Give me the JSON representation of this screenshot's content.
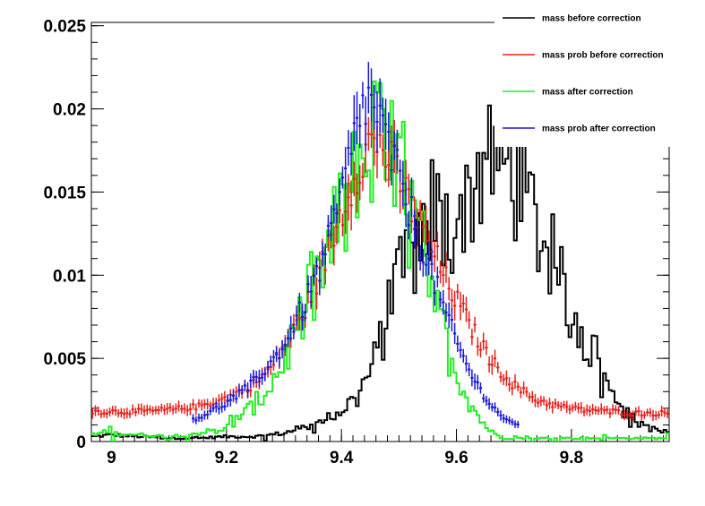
{
  "chart_data": {
    "type": "line",
    "title": "",
    "xlabel": "",
    "ylabel": "",
    "xlim": [
      8.965,
      9.97
    ],
    "ylim": [
      0,
      0.0252
    ],
    "grid": false,
    "legend_position": "top-right",
    "x_ticks": [
      {
        "value": 9.0,
        "label": "9"
      },
      {
        "value": 9.2,
        "label": "9.2"
      },
      {
        "value": 9.4,
        "label": "9.4"
      },
      {
        "value": 9.6,
        "label": "9.6"
      },
      {
        "value": 9.8,
        "label": "9.8"
      }
    ],
    "y_ticks": [
      {
        "value": 0,
        "label": "0"
      },
      {
        "value": 0.005,
        "label": "0.005"
      },
      {
        "value": 0.01,
        "label": "0.01"
      },
      {
        "value": 0.015,
        "label": "0.015"
      },
      {
        "value": 0.02,
        "label": "0.02"
      },
      {
        "value": 0.025,
        "label": "0.025"
      }
    ],
    "bin_width": 0.005,
    "series": [
      {
        "name": "mass before correction",
        "style": "histogram",
        "color": "#000000",
        "x": [
          8.97,
          9.0,
          9.05,
          9.1,
          9.15,
          9.2,
          9.25,
          9.3,
          9.33,
          9.36,
          9.39,
          9.42,
          9.44,
          9.46,
          9.48,
          9.5,
          9.52,
          9.54,
          9.56,
          9.58,
          9.6,
          9.62,
          9.64,
          9.66,
          9.68,
          9.7,
          9.72,
          9.74,
          9.76,
          9.78,
          9.8,
          9.83,
          9.86,
          9.9,
          9.95,
          9.97
        ],
        "values": [
          0.0003,
          0.0004,
          0.0003,
          0.0002,
          0.0002,
          0.0003,
          0.0003,
          0.0005,
          0.0008,
          0.0011,
          0.0016,
          0.0025,
          0.0035,
          0.005,
          0.0075,
          0.0095,
          0.011,
          0.0125,
          0.014,
          0.0125,
          0.0135,
          0.0145,
          0.0165,
          0.0175,
          0.017,
          0.0163,
          0.0145,
          0.013,
          0.0115,
          0.0095,
          0.0075,
          0.006,
          0.0035,
          0.0015,
          0.0006,
          0.0006
        ]
      },
      {
        "name": "mass prob before correction",
        "style": "markers",
        "color": "#e8201a",
        "x": [
          8.97,
          9.05,
          9.1,
          9.15,
          9.2,
          9.25,
          9.28,
          9.3,
          9.32,
          9.34,
          9.36,
          9.38,
          9.4,
          9.42,
          9.44,
          9.46,
          9.48,
          9.5,
          9.52,
          9.54,
          9.56,
          9.58,
          9.6,
          9.62,
          9.64,
          9.66,
          9.68,
          9.7,
          9.72,
          9.74,
          9.76,
          9.78,
          9.8,
          9.82,
          9.84,
          9.86,
          9.88,
          9.9,
          9.92,
          9.94,
          9.96
        ],
        "values": [
          0.0018,
          0.0018,
          0.0019,
          0.0021,
          0.0026,
          0.0035,
          0.0045,
          0.0058,
          0.0068,
          0.0082,
          0.01,
          0.0118,
          0.0138,
          0.0158,
          0.0175,
          0.0182,
          0.0172,
          0.0158,
          0.0142,
          0.0128,
          0.0114,
          0.0098,
          0.0085,
          0.0072,
          0.006,
          0.0049,
          0.0041,
          0.0034,
          0.0029,
          0.0025,
          0.0023,
          0.0021,
          0.002,
          0.0019,
          0.0019,
          0.0018,
          0.0018,
          0.0017,
          0.0017,
          0.0017,
          0.0017
        ]
      },
      {
        "name": "mass after correction",
        "style": "histogram",
        "color": "#22ee22",
        "x": [
          8.97,
          9.0,
          9.05,
          9.1,
          9.15,
          9.2,
          9.23,
          9.26,
          9.29,
          9.32,
          9.35,
          9.38,
          9.4,
          9.42,
          9.44,
          9.46,
          9.48,
          9.5,
          9.52,
          9.54,
          9.56,
          9.58,
          9.6,
          9.62,
          9.64,
          9.66,
          9.68
        ],
        "values": [
          0.0004,
          0.0005,
          0.0004,
          0.0003,
          0.0005,
          0.0008,
          0.0016,
          0.0026,
          0.0042,
          0.0065,
          0.009,
          0.0115,
          0.0135,
          0.015,
          0.0165,
          0.0175,
          0.0172,
          0.0162,
          0.0138,
          0.0115,
          0.0085,
          0.0062,
          0.0042,
          0.0026,
          0.0014,
          0.0006,
          0.0002
        ]
      },
      {
        "name": "mass prob after correction",
        "style": "markers",
        "color": "#1a1ad8",
        "x": [
          9.15,
          9.2,
          9.24,
          9.28,
          9.3,
          9.32,
          9.34,
          9.36,
          9.38,
          9.4,
          9.42,
          9.44,
          9.46,
          9.48,
          9.5,
          9.52,
          9.54,
          9.56,
          9.58,
          9.6,
          9.62,
          9.64,
          9.66,
          9.68,
          9.7
        ],
        "values": [
          0.0014,
          0.0023,
          0.0033,
          0.0048,
          0.0058,
          0.0072,
          0.0086,
          0.0102,
          0.0122,
          0.0148,
          0.0178,
          0.0205,
          0.02,
          0.0178,
          0.0158,
          0.0138,
          0.0118,
          0.0098,
          0.0078,
          0.006,
          0.0044,
          0.0032,
          0.0022,
          0.0015,
          0.001
        ]
      }
    ]
  }
}
